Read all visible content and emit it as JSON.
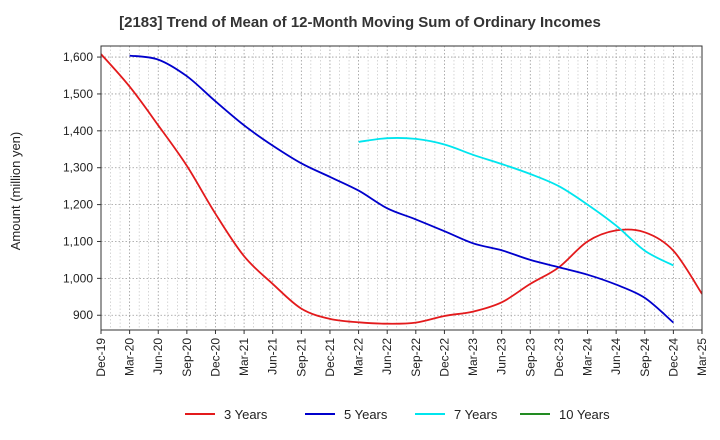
{
  "chart_data": {
    "type": "line",
    "title": "[2183]  Trend of Mean of 12-Month Moving Sum of Ordinary Incomes",
    "xlabel": "",
    "ylabel": "Amount (million yen)",
    "x_ticks": [
      "Dec-19",
      "Mar-20",
      "Jun-20",
      "Sep-20",
      "Dec-20",
      "Mar-21",
      "Jun-21",
      "Sep-21",
      "Dec-21",
      "Mar-22",
      "Jun-22",
      "Sep-22",
      "Dec-22",
      "Mar-23",
      "Jun-23",
      "Sep-23",
      "Dec-23",
      "Mar-24",
      "Jun-24",
      "Sep-24",
      "Dec-24",
      "Mar-25"
    ],
    "y_ticks": [
      900,
      1000,
      1100,
      1200,
      1300,
      1400,
      1500,
      1600
    ],
    "y_tick_labels": [
      "900",
      "1,000",
      "1,100",
      "1,200",
      "1,300",
      "1,400",
      "1,500",
      "1,600"
    ],
    "ylim": [
      860,
      1630
    ],
    "grid": true,
    "legend_position": "bottom",
    "series": [
      {
        "name": "3 Years",
        "color": "#e31a1c",
        "start_index": 0,
        "values": [
          1608,
          1520,
          1415,
          1305,
          1175,
          1060,
          985,
          918,
          890,
          881,
          877,
          880,
          898,
          910,
          935,
          985,
          1030,
          1100,
          1130,
          1125,
          1075,
          958
        ]
      },
      {
        "name": "5 Years",
        "color": "#0000cc",
        "start_index": 1,
        "values": [
          1604,
          1593,
          1548,
          1480,
          1415,
          1360,
          1312,
          1275,
          1238,
          1190,
          1160,
          1128,
          1095,
          1076,
          1050,
          1030,
          1010,
          983,
          947,
          880
        ]
      },
      {
        "name": "7 Years",
        "color": "#00e5ee",
        "start_index": 9,
        "values": [
          1370,
          1380,
          1378,
          1363,
          1335,
          1310,
          1283,
          1250,
          1200,
          1143,
          1075,
          1035
        ]
      },
      {
        "name": "10 Years",
        "color": "#228b22",
        "start_index": 0,
        "values": []
      }
    ]
  }
}
